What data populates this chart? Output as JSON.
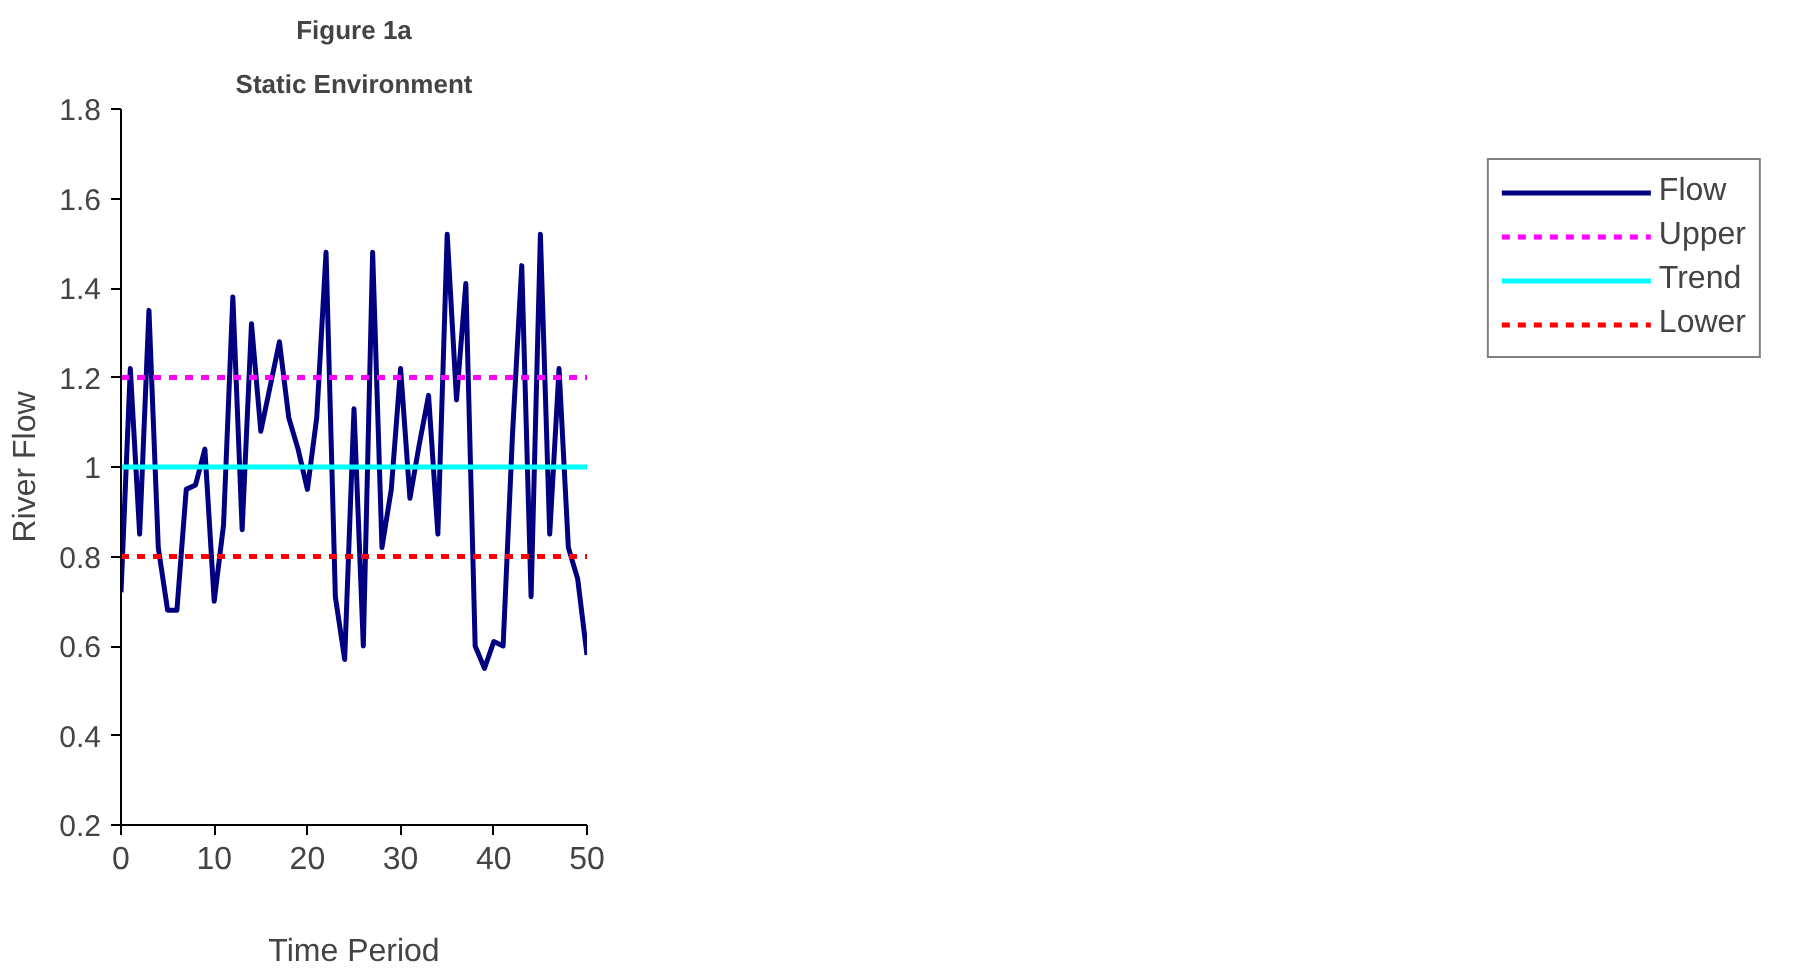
{
  "chart_data": {
    "type": "line",
    "title": "Figure 1a",
    "subtitle": "Static Environment",
    "xlabel": "Time Period",
    "ylabel": "River Flow",
    "x": [
      0,
      1,
      2,
      3,
      4,
      5,
      6,
      7,
      8,
      9,
      10,
      11,
      12,
      13,
      14,
      15,
      16,
      17,
      18,
      19,
      20,
      21,
      22,
      23,
      24,
      25,
      26,
      27,
      28,
      29,
      30,
      31,
      32,
      33,
      34,
      35,
      36,
      37,
      38,
      39,
      40,
      41,
      42,
      43,
      44,
      45,
      46,
      47,
      48,
      49,
      50
    ],
    "series": [
      {
        "name": "Flow",
        "color": "#000080",
        "values": [
          0.72,
          1.22,
          0.85,
          1.35,
          0.82,
          0.68,
          0.68,
          0.95,
          0.96,
          1.04,
          0.7,
          0.87,
          1.38,
          0.86,
          1.32,
          1.08,
          1.18,
          1.28,
          1.11,
          1.04,
          0.95,
          1.11,
          1.48,
          0.71,
          0.57,
          1.13,
          0.6,
          1.48,
          0.82,
          0.95,
          1.22,
          0.93,
          1.05,
          1.16,
          0.85,
          1.52,
          1.15,
          1.41,
          0.6,
          0.55,
          0.61,
          0.6,
          1.07,
          1.45,
          0.71,
          1.52,
          0.85,
          1.22,
          0.82,
          0.75,
          0.58
        ]
      }
    ],
    "ref_lines": [
      {
        "axis": "y",
        "value": 1.2,
        "label": "Upper",
        "color": "#ff00ff",
        "line_style": "dashed"
      },
      {
        "axis": "y",
        "value": 1,
        "label": "Trend",
        "color": "#00ffff",
        "line_style": "solid"
      },
      {
        "axis": "y",
        "value": 0.8,
        "label": "Lower",
        "color": "#ff0000",
        "line_style": "dashed"
      }
    ],
    "xlim": [
      0,
      50
    ],
    "ylim": [
      0.2,
      1.8
    ],
    "xticks": [
      0,
      10,
      20,
      30,
      40,
      50
    ],
    "yticks": [
      0.2,
      0.4,
      0.6,
      0.8,
      1,
      1.2,
      1.4,
      1.6,
      1.8
    ],
    "grid": false,
    "legend": "right",
    "marker": "none",
    "line_style": "solid"
  }
}
